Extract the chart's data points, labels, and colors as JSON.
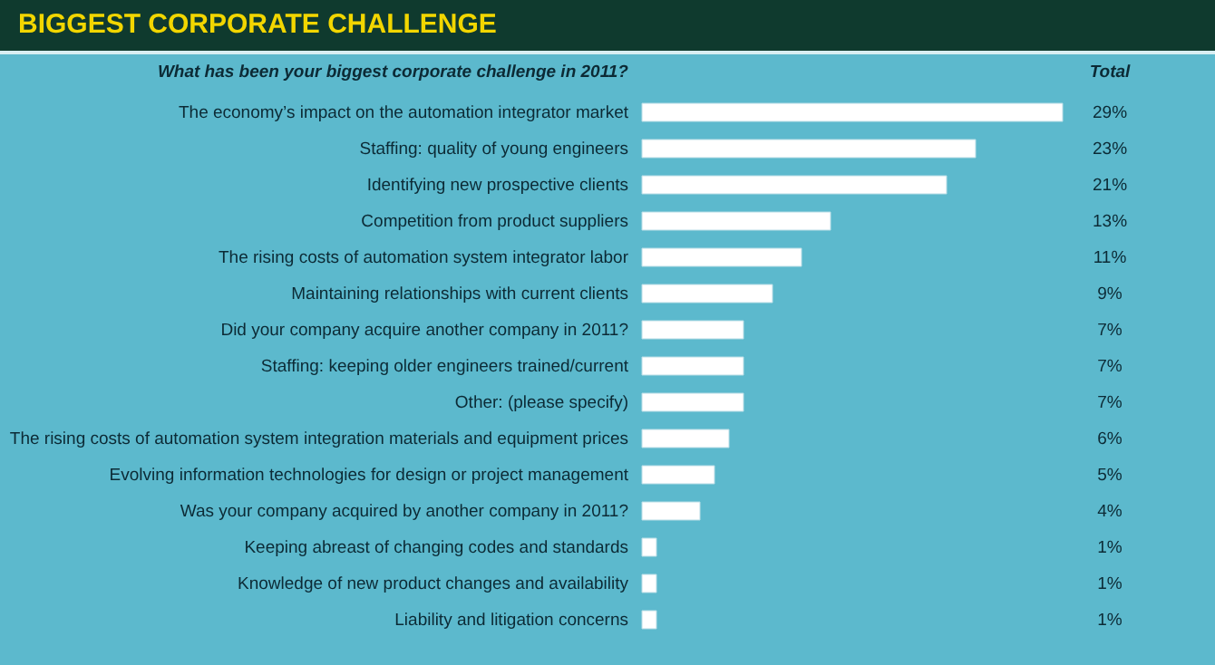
{
  "chart_data": {
    "type": "bar",
    "orientation": "horizontal",
    "title": "BIGGEST CORPORATE CHALLENGE",
    "ylabel": "What has been your biggest corporate challenge in 2011?",
    "annotations": [
      "Total"
    ],
    "categories": [
      "The economy’s impact on the automation integrator market",
      "Staffing: quality of young engineers",
      "Identifying new prospective clients",
      "Competition from product suppliers",
      "The rising costs of automation system integrator labor",
      "Maintaining relationships with current clients",
      "Did your company acquire another company in 2011?",
      "Staffing: keeping older engineers trained/current",
      "Other: (please specify)",
      "The rising costs of automation system integration materials and equipment prices",
      "Evolving information technologies for design or project management",
      "Was your company acquired by another company in 2011?",
      "Keeping abreast of changing codes and standards",
      "Knowledge of new product changes and availability",
      "Liability and litigation concerns"
    ],
    "values": [
      29,
      23,
      21,
      13,
      11,
      9,
      7,
      7,
      7,
      6,
      5,
      4,
      1,
      1,
      1
    ],
    "value_labels": [
      "29%",
      "23%",
      "21%",
      "13%",
      "11%",
      "9%",
      "7%",
      "7%",
      "7%",
      "6%",
      "5%",
      "4%",
      "1%",
      "1%",
      "1%"
    ],
    "color": "#ffffff",
    "xlim": [
      0,
      29
    ],
    "tick_labels": "y"
  }
}
